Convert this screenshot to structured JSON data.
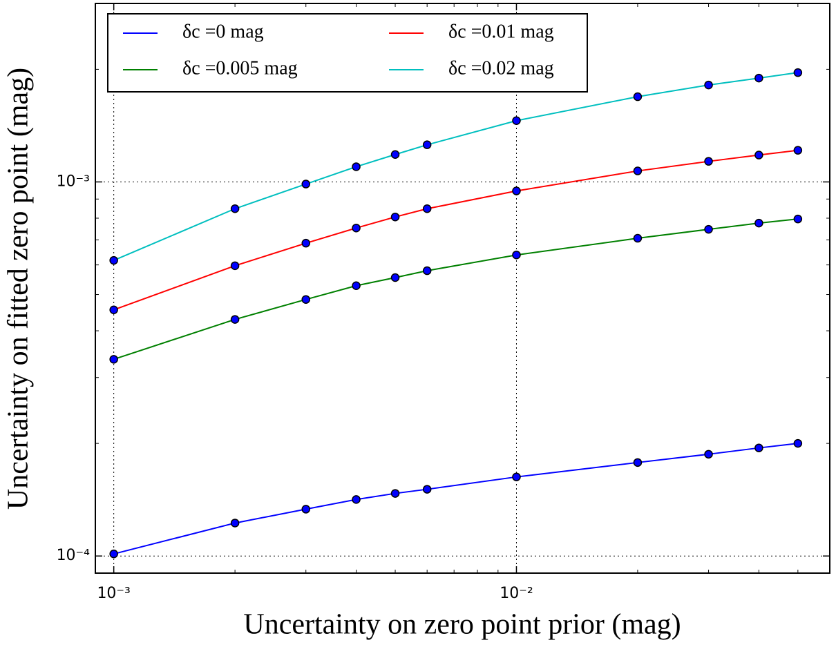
{
  "chart_data": {
    "type": "line",
    "xlabel": "Uncertainty on zero point prior (mag)",
    "ylabel": "Uncertainty on fitted zero point (mag)",
    "x": [
      0.001,
      0.002,
      0.003,
      0.004,
      0.005,
      0.006,
      0.01,
      0.02,
      0.03,
      0.04,
      0.05
    ],
    "series": [
      {
        "name": "δc =0 mag",
        "color": "#0000ff",
        "values": [
          0.0001013,
          0.0001225,
          0.0001334,
          0.0001416,
          0.000147,
          0.0001508,
          0.0001627,
          0.0001778,
          0.0001871,
          0.0001945,
          0.0002
        ]
      },
      {
        "name": "δc =0.005 mag",
        "color": "#008000",
        "values": [
          0.0003356,
          0.000429,
          0.000485,
          0.000528,
          0.000555,
          0.000579,
          0.000638,
          0.000707,
          0.000747,
          0.000776,
          0.000796
        ]
      },
      {
        "name": "δc =0.01 mag",
        "color": "#ff0000",
        "values": [
          0.000455,
          0.000597,
          0.000686,
          0.000753,
          0.000806,
          0.000848,
          0.000946,
          0.00107,
          0.001135,
          0.00118,
          0.001215
        ]
      },
      {
        "name": "δc =0.02 mag",
        "color": "#00bfbf",
        "values": [
          0.000617,
          0.000848,
          0.000987,
          0.001098,
          0.001184,
          0.001257,
          0.001458,
          0.00169,
          0.001816,
          0.001895,
          0.00196
        ]
      }
    ],
    "marker_color": "#0000ff",
    "xscale": "log",
    "yscale": "log",
    "xlim": [
      0.0009,
      0.06
    ],
    "ylim": [
      9e-05,
      0.003
    ],
    "xticks": [
      {
        "value": 0.001,
        "label": "10⁻³"
      },
      {
        "value": 0.01,
        "label": "10⁻²"
      }
    ],
    "yticks": [
      {
        "value": 0.0001,
        "label": "10⁻⁴"
      },
      {
        "value": 0.001,
        "label": "10⁻³"
      }
    ],
    "xminorticks": [
      0.002,
      0.003,
      0.004,
      0.005,
      0.006,
      0.007,
      0.008,
      0.009,
      0.02,
      0.03,
      0.04,
      0.05
    ],
    "yminorticks": [
      0.0002,
      0.0003,
      0.0004,
      0.0005,
      0.0006,
      0.0007,
      0.0008,
      0.0009,
      0.002
    ],
    "grid": true,
    "legend_loc": "upper left",
    "legend_columns": 2
  }
}
